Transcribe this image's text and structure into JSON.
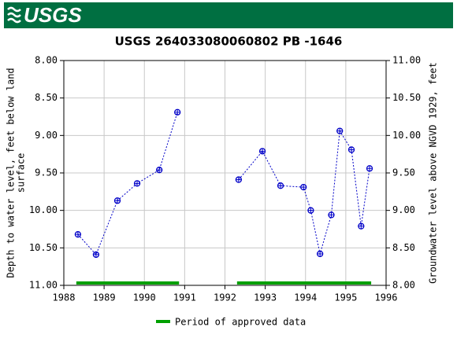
{
  "header": {
    "logo": "USGS"
  },
  "chart_data": {
    "type": "scatter",
    "title": "USGS 264033080060802 PB -1646",
    "ylabel": [
      "Depth to water level, feet below land",
      "surface"
    ],
    "y2label": "Groundwater level above NGVD 1929, feet",
    "x": [
      1988.35,
      1988.8,
      1989.33,
      1989.82,
      1990.37,
      1990.82,
      null,
      1992.34,
      1992.93,
      1993.38,
      1993.95,
      1994.13,
      1994.36,
      1994.64,
      1994.85,
      1995.14,
      1995.38,
      1995.59
    ],
    "values": [
      10.32,
      10.59,
      9.87,
      9.64,
      9.46,
      8.69,
      null,
      9.59,
      9.21,
      9.67,
      9.69,
      10.0,
      10.58,
      10.06,
      8.94,
      9.19,
      10.21,
      9.44
    ],
    "color": "#0000c8",
    "xlim": [
      1988,
      1996
    ],
    "xticks": [
      1988,
      1989,
      1990,
      1991,
      1992,
      1993,
      1994,
      1995,
      1996
    ],
    "ylim": [
      8,
      11
    ],
    "y_inverted": true,
    "yticks": [
      {
        "value": 8,
        "label": "8.00"
      },
      {
        "value": 8.5,
        "label": "8.50"
      },
      {
        "value": 9,
        "label": "9.00"
      },
      {
        "value": 9.5,
        "label": "9.50"
      },
      {
        "value": 10,
        "label": "10.00"
      },
      {
        "value": 10.5,
        "label": "10.50"
      },
      {
        "value": 11,
        "label": "11.00"
      }
    ],
    "y2lim": [
      8,
      11
    ],
    "y2ticks": [
      {
        "value": 11,
        "label": "11.00"
      },
      {
        "value": 10.5,
        "label": "10.50"
      },
      {
        "value": 10,
        "label": "10.00"
      },
      {
        "value": 9.5,
        "label": "9.50"
      },
      {
        "value": 9,
        "label": "9.00"
      },
      {
        "value": 8.5,
        "label": "8.50"
      },
      {
        "value": 8,
        "label": "8.00"
      }
    ],
    "grid": true,
    "approved_periods": [
      [
        1988.31,
        1990.86
      ],
      [
        1992.3,
        1995.63
      ]
    ],
    "approved_color": "#00a000",
    "legend_label": "Period of approved data"
  }
}
